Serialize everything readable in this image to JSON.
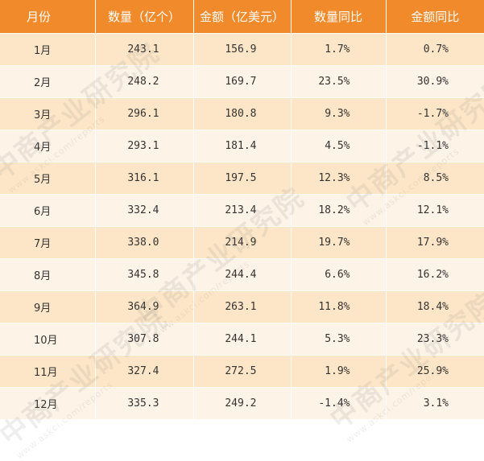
{
  "table": {
    "headers": [
      "月份",
      "数量（亿个）",
      "金额（亿美元）",
      "数量同比",
      "金额同比"
    ],
    "rows": [
      {
        "month": "1月",
        "quantity": "243.1",
        "amount": "156.9",
        "quantity_yoy": "1.7%",
        "amount_yoy": "0.7%"
      },
      {
        "month": "2月",
        "quantity": "248.2",
        "amount": "169.7",
        "quantity_yoy": "23.5%",
        "amount_yoy": "30.9%"
      },
      {
        "month": "3月",
        "quantity": "296.1",
        "amount": "180.8",
        "quantity_yoy": "9.3%",
        "amount_yoy": "-1.7%"
      },
      {
        "month": "4月",
        "quantity": "293.1",
        "amount": "181.4",
        "quantity_yoy": "4.5%",
        "amount_yoy": "-1.1%"
      },
      {
        "month": "5月",
        "quantity": "316.1",
        "amount": "197.5",
        "quantity_yoy": "12.3%",
        "amount_yoy": "8.5%"
      },
      {
        "month": "6月",
        "quantity": "332.4",
        "amount": "213.4",
        "quantity_yoy": "18.2%",
        "amount_yoy": "12.1%"
      },
      {
        "month": "7月",
        "quantity": "338.0",
        "amount": "214.9",
        "quantity_yoy": "19.7%",
        "amount_yoy": "17.9%"
      },
      {
        "month": "8月",
        "quantity": "345.8",
        "amount": "244.4",
        "quantity_yoy": "6.6%",
        "amount_yoy": "16.2%"
      },
      {
        "month": "9月",
        "quantity": "364.9",
        "amount": "263.1",
        "quantity_yoy": "11.8%",
        "amount_yoy": "18.4%"
      },
      {
        "month": "10月",
        "quantity": "307.8",
        "amount": "244.1",
        "quantity_yoy": "5.3%",
        "amount_yoy": "23.3%"
      },
      {
        "month": "11月",
        "quantity": "327.4",
        "amount": "272.5",
        "quantity_yoy": "1.9%",
        "amount_yoy": "25.9%"
      },
      {
        "month": "12月",
        "quantity": "335.3",
        "amount": "249.2",
        "quantity_yoy": "-1.4%",
        "amount_yoy": "3.1%"
      }
    ]
  },
  "watermark": {
    "text": "中商产业研究院",
    "subtext": "www.askci.com/reports"
  },
  "colors": {
    "header_bg": "#f08a2a",
    "row_odd": "#fde6c7",
    "row_even": "#fdf3e6"
  }
}
